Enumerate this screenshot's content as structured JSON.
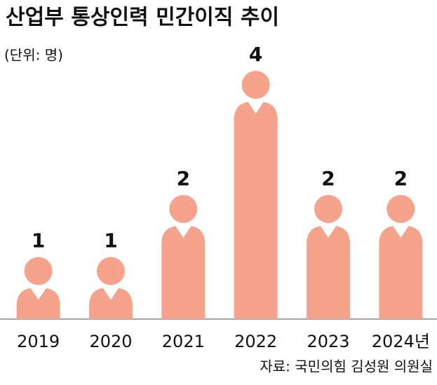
{
  "chart_data": {
    "type": "pictograph",
    "title": "산업부 통상인력 민간이직 추이",
    "subtitle": "(단위: 명)",
    "source": "자료: 국민의힘 김성원 의원실",
    "categories": [
      "2019",
      "2020",
      "2021",
      "2022",
      "2023",
      "2024년"
    ],
    "values": [
      1,
      1,
      2,
      4,
      2,
      2
    ],
    "color": "#f5a38c"
  }
}
